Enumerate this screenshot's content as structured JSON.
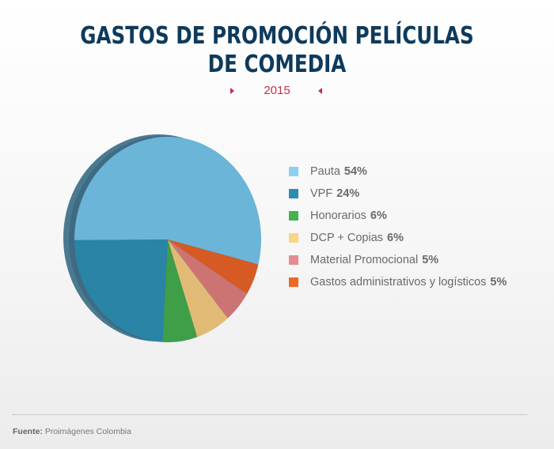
{
  "header": {
    "title_line1": "GASTOS DE PROMOCIÓN PELÍCULAS",
    "title_line2": "DE COMEDIA",
    "year": "2015"
  },
  "footer": {
    "source_label": "Fuente:",
    "source_text": "Proimágenes Colombia"
  },
  "chart_data": {
    "type": "pie",
    "title": "GASTOS DE PROMOCIÓN PELÍCULAS DE COMEDIA",
    "subtitle": "2015",
    "legend_position": "right",
    "slices": [
      {
        "label": "Pauta",
        "value": 54,
        "display": "54%",
        "color": "#6ab5d8",
        "legend_color": "#8dd1f0"
      },
      {
        "label": "VPF",
        "value": 24,
        "display": "24%",
        "color": "#2984a6",
        "legend_color": "#2b8db2"
      },
      {
        "label": "Honorarios",
        "value": 6,
        "display": "6%",
        "color": "#3f9e48",
        "legend_color": "#45b14f"
      },
      {
        "label": "DCP + Copias",
        "value": 6,
        "display": "6%",
        "color": "#e1bb76",
        "legend_color": "#f8d589"
      },
      {
        "label": "Material Promocional",
        "value": 5,
        "display": "5%",
        "color": "#cc7474",
        "legend_color": "#e48c8e"
      },
      {
        "label": "Gastos administrativos y logísticos",
        "value": 5,
        "display": "5%",
        "color": "#d65a23",
        "legend_color": "#ec6a27"
      }
    ]
  }
}
